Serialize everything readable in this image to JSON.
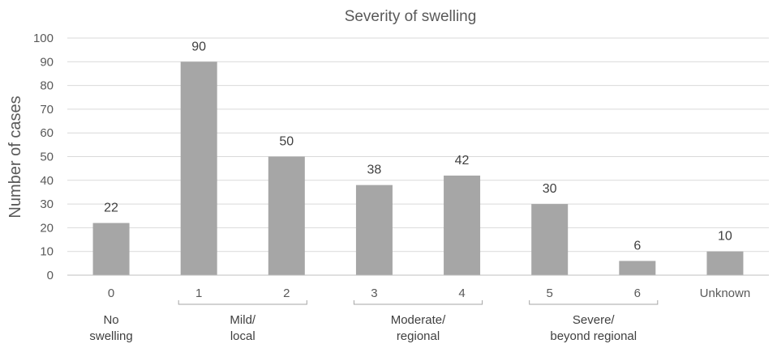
{
  "chart_data": {
    "type": "bar",
    "title": "Severity of swelling",
    "xlabel": "",
    "ylabel": "Number of cases",
    "ylim": [
      0,
      100
    ],
    "yticks": [
      0,
      10,
      20,
      30,
      40,
      50,
      60,
      70,
      80,
      90,
      100
    ],
    "grid": true,
    "legend": "none",
    "categories": [
      "0",
      "1",
      "2",
      "3",
      "4",
      "5",
      "6",
      "Unknown"
    ],
    "values": [
      22,
      90,
      50,
      38,
      42,
      30,
      6,
      10
    ],
    "bar_color": "#a6a6a6",
    "grid_color": "#d9d9d9",
    "groups": [
      {
        "lines": [
          "No",
          "swelling"
        ],
        "from": 0,
        "to": 0,
        "bracket": false
      },
      {
        "lines": [
          "Mild/",
          "local"
        ],
        "from": 1,
        "to": 2,
        "bracket": true
      },
      {
        "lines": [
          "Moderate/",
          "regional"
        ],
        "from": 3,
        "to": 4,
        "bracket": true
      },
      {
        "lines": [
          "Severe/",
          "beyond regional"
        ],
        "from": 5,
        "to": 6,
        "bracket": true
      }
    ]
  }
}
